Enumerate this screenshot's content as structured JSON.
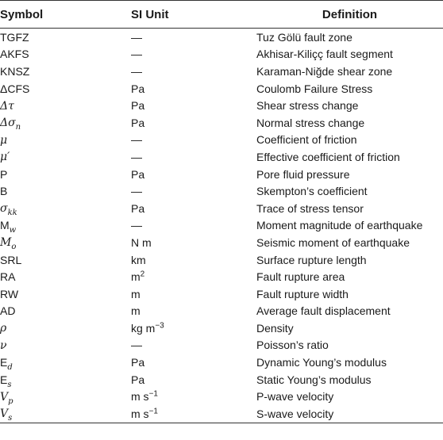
{
  "headers": {
    "symbol": "Symbol",
    "unit": "SI Unit",
    "definition": "Definition"
  },
  "rows": [
    {
      "sym": "TGFZ",
      "sym_sub": "",
      "sym_sup": "",
      "sym_italic": false,
      "unit": "—",
      "unit_sup": "",
      "unit_suffix": "",
      "def": "Tuz Gölü fault zone"
    },
    {
      "sym": "AKFS",
      "sym_sub": "",
      "sym_sup": "",
      "sym_italic": false,
      "unit": "—",
      "unit_sup": "",
      "unit_suffix": "",
      "def": "Akhisar-Kiliçç fault segment"
    },
    {
      "sym": "KNSZ",
      "sym_sub": "",
      "sym_sup": "",
      "sym_italic": false,
      "unit": "—",
      "unit_sup": "",
      "unit_suffix": "",
      "def": "Karaman-Niğde shear zone"
    },
    {
      "sym": "ΔCFS",
      "sym_sub": "",
      "sym_sup": "",
      "sym_italic": false,
      "unit": "Pa",
      "unit_sup": "",
      "unit_suffix": "",
      "def": "Coulomb Failure Stress"
    },
    {
      "sym": "Δτ",
      "sym_sub": "",
      "sym_sup": "",
      "sym_italic": true,
      "unit": "Pa",
      "unit_sup": "",
      "unit_suffix": "",
      "def": "Shear stress change"
    },
    {
      "sym": "Δσ",
      "sym_sub": "n",
      "sym_sup": "",
      "sym_italic": true,
      "unit": "Pa",
      "unit_sup": "",
      "unit_suffix": "",
      "def": "Normal stress change"
    },
    {
      "sym": "μ",
      "sym_sub": "",
      "sym_sup": "",
      "sym_italic": true,
      "unit": "—",
      "unit_sup": "",
      "unit_suffix": "",
      "def": "Coefficient of friction"
    },
    {
      "sym": "μ′",
      "sym_sub": "",
      "sym_sup": "",
      "sym_italic": true,
      "unit": "—",
      "unit_sup": "",
      "unit_suffix": "",
      "def": "Effective coefficient of friction"
    },
    {
      "sym": "P",
      "sym_sub": "",
      "sym_sup": "",
      "sym_italic": false,
      "unit": "Pa",
      "unit_sup": "",
      "unit_suffix": "",
      "def": "Pore fluid pressure"
    },
    {
      "sym": "B",
      "sym_sub": "",
      "sym_sup": "",
      "sym_italic": false,
      "unit": "—",
      "unit_sup": "",
      "unit_suffix": "",
      "def": "Skempton’s coefficient"
    },
    {
      "sym": "σ",
      "sym_sub": "kk",
      "sym_sup": "",
      "sym_italic": true,
      "unit": "Pa",
      "unit_sup": "",
      "unit_suffix": "",
      "def": "Trace of stress tensor"
    },
    {
      "sym": "M",
      "sym_sub": "w",
      "sym_sup": "",
      "sym_italic": false,
      "unit": "—",
      "unit_sup": "",
      "unit_suffix": "",
      "def": "Moment magnitude of earthquake"
    },
    {
      "sym": "M",
      "sym_sub": "o",
      "sym_sup": "",
      "sym_italic": true,
      "unit": "N m",
      "unit_sup": "",
      "unit_suffix": "",
      "def": "Seismic moment of earthquake"
    },
    {
      "sym": "SRL",
      "sym_sub": "",
      "sym_sup": "",
      "sym_italic": false,
      "unit": "km",
      "unit_sup": "",
      "unit_suffix": "",
      "def": "Surface rupture length"
    },
    {
      "sym": "RA",
      "sym_sub": "",
      "sym_sup": "",
      "sym_italic": false,
      "unit": "m",
      "unit_sup": "2",
      "unit_suffix": "",
      "def": "Fault rupture area"
    },
    {
      "sym": "RW",
      "sym_sub": "",
      "sym_sup": "",
      "sym_italic": false,
      "unit": "m",
      "unit_sup": "",
      "unit_suffix": "",
      "def": "Fault rupture width"
    },
    {
      "sym": "AD",
      "sym_sub": "",
      "sym_sup": "",
      "sym_italic": false,
      "unit": "m",
      "unit_sup": "",
      "unit_suffix": "",
      "def": "Average fault displacement"
    },
    {
      "sym": "ρ",
      "sym_sub": "",
      "sym_sup": "",
      "sym_italic": true,
      "unit": "kg m",
      "unit_sup": "−3",
      "unit_suffix": "",
      "def": "Density"
    },
    {
      "sym": "ν",
      "sym_sub": "",
      "sym_sup": "",
      "sym_italic": true,
      "unit": "—",
      "unit_sup": "",
      "unit_suffix": "",
      "def": "Poisson’s ratio"
    },
    {
      "sym": "E",
      "sym_sub": "d",
      "sym_sup": "",
      "sym_italic": false,
      "unit": "Pa",
      "unit_sup": "",
      "unit_suffix": "",
      "def": "Dynamic Young’s modulus"
    },
    {
      "sym": "E",
      "sym_sub": "s",
      "sym_sup": "",
      "sym_italic": false,
      "unit": "Pa",
      "unit_sup": "",
      "unit_suffix": "",
      "def": "Static Young’s modulus"
    },
    {
      "sym": "V",
      "sym_sub": "p",
      "sym_sup": "",
      "sym_italic": true,
      "unit": "m s",
      "unit_sup": "−1",
      "unit_suffix": "",
      "def": "P-wave velocity"
    },
    {
      "sym": "V",
      "sym_sub": "s",
      "sym_sup": "",
      "sym_italic": true,
      "unit": "m s",
      "unit_sup": "−1",
      "unit_suffix": "",
      "def": "S-wave velocity"
    }
  ]
}
